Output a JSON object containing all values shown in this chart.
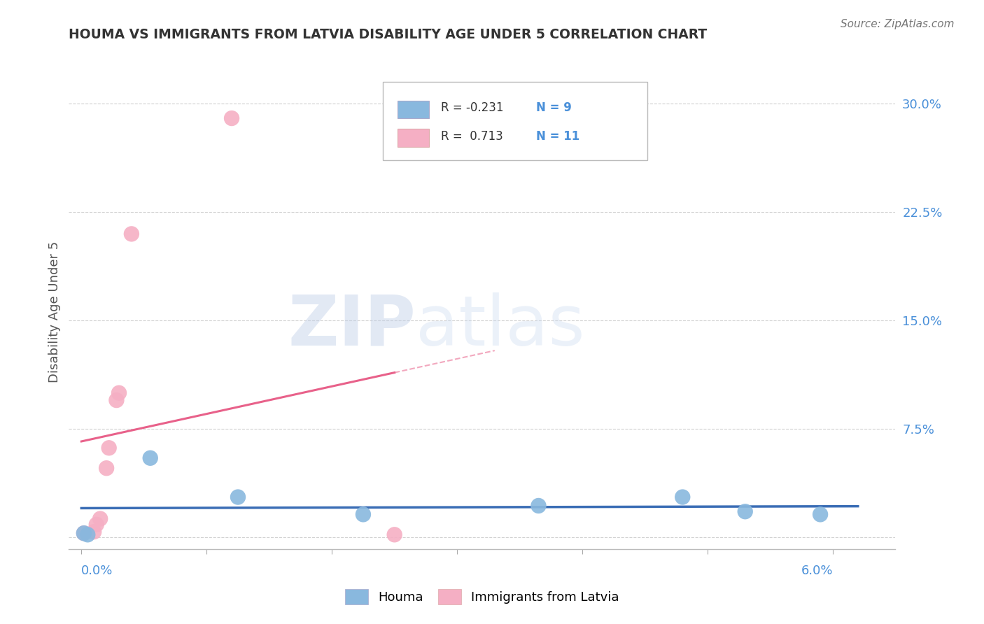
{
  "title": "HOUMA VS IMMIGRANTS FROM LATVIA DISABILITY AGE UNDER 5 CORRELATION CHART",
  "source": "Source: ZipAtlas.com",
  "ylabel": "Disability Age Under 5",
  "yticks": [
    0.0,
    0.075,
    0.15,
    0.225,
    0.3
  ],
  "ytick_labels": [
    "",
    "7.5%",
    "15.0%",
    "22.5%",
    "30.0%"
  ],
  "xticks": [
    0.0,
    0.01,
    0.02,
    0.03,
    0.04,
    0.05,
    0.06
  ],
  "xlim": [
    -0.001,
    0.065
  ],
  "ylim": [
    -0.008,
    0.32
  ],
  "houma_x": [
    0.0002,
    0.0005,
    0.0055,
    0.0125,
    0.0225,
    0.0365,
    0.048,
    0.053,
    0.059
  ],
  "houma_y": [
    0.003,
    0.002,
    0.055,
    0.028,
    0.016,
    0.022,
    0.028,
    0.018,
    0.016
  ],
  "latvia_x": [
    0.0002,
    0.001,
    0.0012,
    0.0015,
    0.002,
    0.0022,
    0.0028,
    0.003,
    0.004,
    0.012,
    0.025
  ],
  "latvia_y": [
    0.003,
    0.004,
    0.009,
    0.013,
    0.048,
    0.062,
    0.095,
    0.1,
    0.21,
    0.29,
    0.002
  ],
  "houma_color": "#89b8de",
  "latvia_color": "#f5afc4",
  "houma_line_color": "#3a6db5",
  "latvia_line_color": "#e8618a",
  "houma_R": -0.231,
  "houma_N": 9,
  "latvia_R": 0.713,
  "latvia_N": 11,
  "legend_label_houma": "Houma",
  "legend_label_latvia": "Immigrants from Latvia",
  "watermark_zip": "ZIP",
  "watermark_atlas": "atlas",
  "background_color": "#ffffff",
  "grid_color": "#cccccc",
  "title_color": "#333333",
  "axis_label_color": "#4a90d9",
  "legend_r_color": "#333333",
  "legend_n_color": "#4a90d9"
}
